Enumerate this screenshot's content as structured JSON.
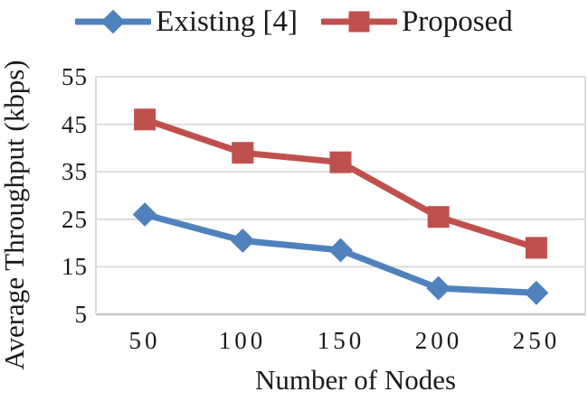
{
  "figure": {
    "background": "#ffffff",
    "text_color": "#1a1a1a"
  },
  "legend": {
    "position": "top",
    "items": [
      {
        "label": "Existing [4]",
        "marker": "diamond",
        "color": "#4f81bd"
      },
      {
        "label": "Proposed",
        "marker": "square",
        "color": "#c0504d"
      }
    ]
  },
  "chart_data": {
    "type": "line",
    "xlabel": "Number of Nodes",
    "ylabel": "Average Throughput (kbps)",
    "categories": [
      50,
      100,
      150,
      200,
      250
    ],
    "series": [
      {
        "name": "Existing [4]",
        "color": "#4f81bd",
        "marker": "diamond",
        "values": [
          26,
          20.5,
          18.5,
          10.5,
          9.5
        ]
      },
      {
        "name": "Proposed",
        "color": "#c0504d",
        "marker": "square",
        "values": [
          46,
          39,
          37,
          25.5,
          19
        ]
      }
    ],
    "yticks": [
      5,
      15,
      25,
      35,
      45,
      55
    ],
    "ylim": [
      5,
      55
    ],
    "grid": "horizontal",
    "gridline_color": "#d9d9d9",
    "axisline_color": "#c6c6c6",
    "legend_position": "top"
  }
}
